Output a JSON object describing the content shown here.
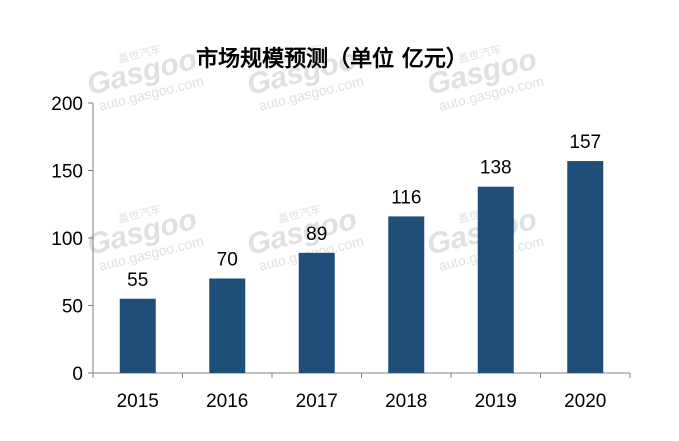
{
  "chart_data": {
    "type": "bar",
    "title": "市场规模预测（单位 亿元）",
    "categories": [
      "2015",
      "2016",
      "2017",
      "2018",
      "2019",
      "2020"
    ],
    "values": [
      55,
      70,
      89,
      116,
      138,
      157
    ],
    "ylim": [
      0,
      200
    ],
    "yticks": [
      0,
      50,
      100,
      150,
      200
    ],
    "grid": false,
    "bar_color": "#1f4e79",
    "xlabel": "",
    "ylabel": ""
  },
  "watermark": {
    "brand": "Gasgoo",
    "site": "auto.gasgoo.com",
    "cn": "盖世汽车"
  }
}
